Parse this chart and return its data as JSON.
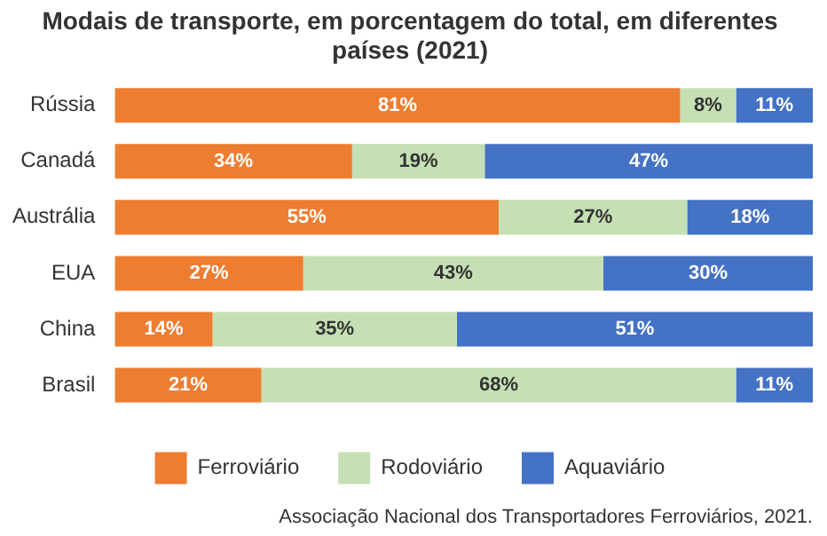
{
  "chart_data": {
    "type": "bar",
    "orientation": "horizontal",
    "stacked": true,
    "title": "Modais de transporte, em porcentagem do total, em diferentes países (2021)",
    "categories": [
      "Rússia",
      "Canadá",
      "Austrália",
      "EUA",
      "China",
      "Brasil"
    ],
    "series": [
      {
        "name": "Ferroviário",
        "color": "#ed7d31",
        "values": [
          81,
          34,
          55,
          27,
          14,
          21
        ],
        "value_labels": [
          "81%",
          "34%",
          "55%",
          "27%",
          "14%",
          "21%"
        ]
      },
      {
        "name": "Rodoviário",
        "color": "#c5e0b4",
        "values": [
          8,
          19,
          27,
          43,
          35,
          68
        ],
        "value_labels": [
          "8%",
          "19%",
          "27%",
          "43%",
          "35%",
          "68%"
        ]
      },
      {
        "name": "Aquaviário",
        "color": "#4472c4",
        "values": [
          11,
          47,
          18,
          30,
          51,
          11
        ],
        "value_labels": [
          "11%",
          "47%",
          "18%",
          "30%",
          "51%",
          "11%"
        ]
      }
    ],
    "legend": "bottom",
    "annotations": [
      "Associação Nacional dos Transportadores Ferroviários, 2021."
    ]
  }
}
